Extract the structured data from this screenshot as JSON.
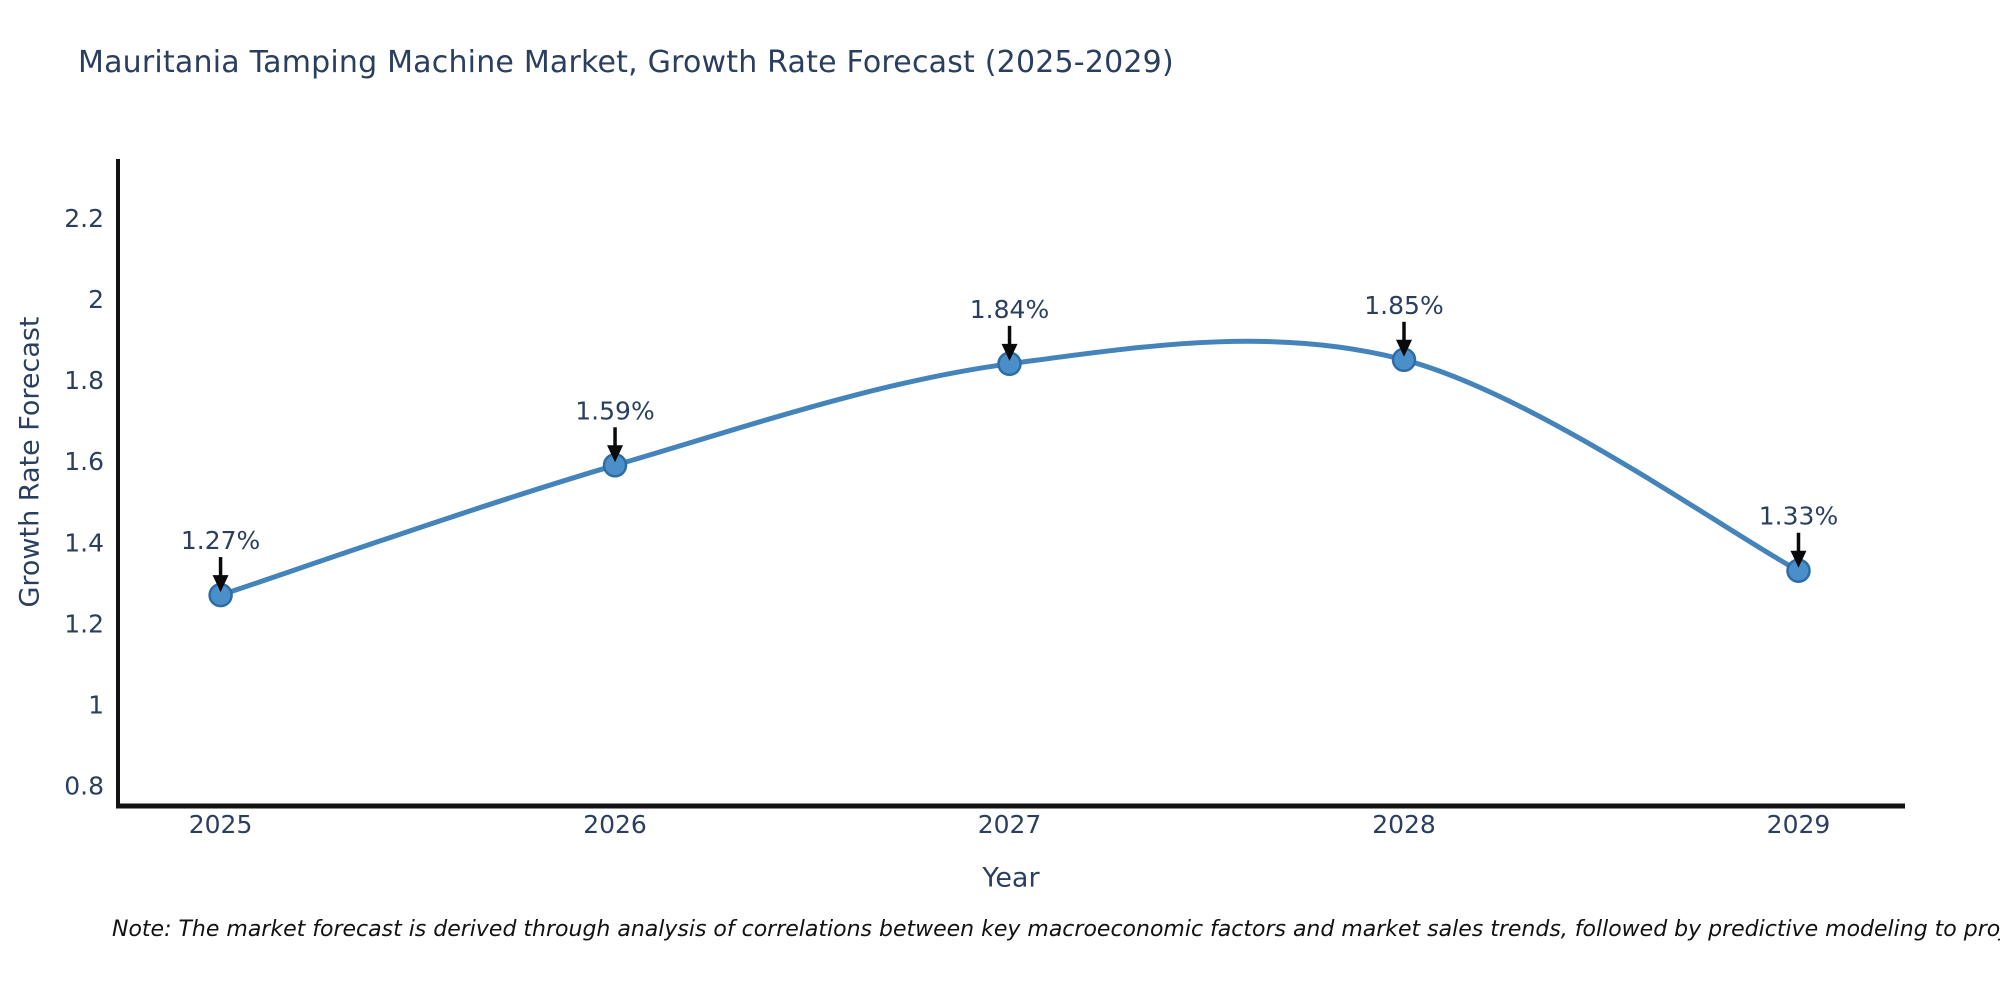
{
  "title": "Mauritania Tamping Machine Market, Growth Rate Forecast (2025-2029)",
  "note": "Note: The market forecast is derived through analysis of correlations between key macroeconomic factors and market sales trends, followed by predictive modeling to project future sales.",
  "colors": {
    "background": "#ffffff",
    "title_text": "#2a3f5f",
    "axis_text": "#2a3f5f",
    "annotation_text": "#2a3f5f",
    "line": "#4484bb",
    "marker_fill": "#4b8fca",
    "marker_stroke": "#2e6ca5",
    "axis_line": "#131313",
    "arrow": "#0a0a0a"
  },
  "chart_data": {
    "type": "line",
    "title": "Mauritania Tamping Machine Market, Growth Rate Forecast (2025-2029)",
    "xlabel": "Year",
    "ylabel": "Growth Rate Forecast",
    "x": [
      2025,
      2026,
      2027,
      2028,
      2029
    ],
    "y": [
      1.27,
      1.59,
      1.84,
      1.85,
      1.33
    ],
    "labels": [
      "1.27%",
      "1.59%",
      "1.84%",
      "1.85%",
      "1.33%"
    ],
    "series": [
      {
        "name": "Growth Rate Forecast",
        "values": [
          1.27,
          1.59,
          1.84,
          1.85,
          1.33
        ]
      }
    ],
    "line_shape": "spline",
    "grid": false,
    "legend_position": "none",
    "xlim": [
      2024.74,
      2029.27
    ],
    "ylim": [
      0.75,
      2.345
    ],
    "xticks": [
      "2025",
      "2026",
      "2027",
      "2028",
      "2029"
    ],
    "xtick_values": [
      2025,
      2026,
      2027,
      2028,
      2029
    ],
    "yticks": [
      "0.8",
      "1",
      "1.2",
      "1.4",
      "1.6",
      "1.8",
      "2",
      "2.2"
    ],
    "ytick_values": [
      0.8,
      1,
      1.2,
      1.4,
      1.6,
      1.8,
      2,
      2.2
    ]
  }
}
